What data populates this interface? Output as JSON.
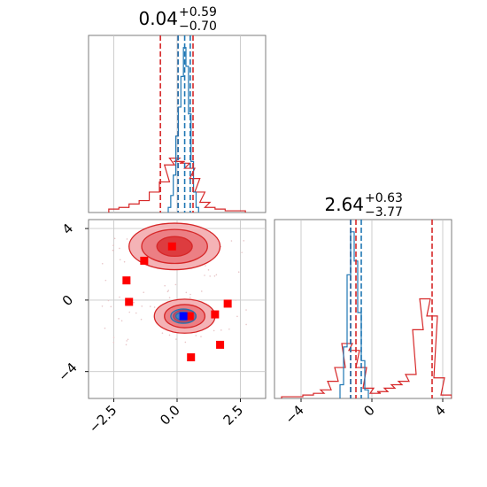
{
  "chart_data": [
    {
      "panel": "top-left",
      "type": "histogram",
      "title": {
        "main": "0.04",
        "sup": "+0.59",
        "sub": "−0.70"
      },
      "xlim": [
        -3.5,
        3.5
      ],
      "series": [
        {
          "color": "#d62728",
          "bin_centers": [
            -2.5,
            -2.1,
            -1.7,
            -1.3,
            -0.9,
            -0.5,
            -0.3,
            -0.1,
            0.1,
            0.3,
            0.5,
            0.7,
            0.9,
            1.1,
            1.3,
            1.7,
            2.1,
            2.5
          ],
          "counts": [
            0.02,
            0.03,
            0.05,
            0.07,
            0.12,
            0.18,
            0.28,
            0.32,
            0.3,
            0.29,
            0.26,
            0.2,
            0.12,
            0.06,
            0.03,
            0.02,
            0.01,
            0.01
          ]
        },
        {
          "color": "#1f77b4",
          "bin_centers": [
            -0.3,
            -0.2,
            -0.1,
            0.0,
            0.1,
            0.2,
            0.3,
            0.4,
            0.5,
            0.6,
            0.7,
            0.8
          ],
          "counts": [
            0.03,
            0.1,
            0.22,
            0.45,
            0.62,
            0.8,
            0.97,
            0.86,
            0.58,
            0.3,
            0.12,
            0.03
          ]
        }
      ],
      "vlines": [
        {
          "x": -0.66,
          "color": "#d62728"
        },
        {
          "x": 0.04,
          "color": "#d62728"
        },
        {
          "x": 0.63,
          "color": "#d62728"
        },
        {
          "x": 0.04,
          "color": "#1f77b4"
        },
        {
          "x": 0.3,
          "color": "#1f77b4"
        },
        {
          "x": 0.52,
          "color": "#1f77b4"
        }
      ]
    },
    {
      "panel": "bottom-right",
      "type": "histogram",
      "title": {
        "main": "2.64",
        "sup": "+0.63",
        "sub": "−3.77"
      },
      "xlim": [
        -5.5,
        4.5
      ],
      "xticks": [
        "−4",
        "0",
        "4"
      ],
      "xtick_values": [
        -4,
        0,
        4
      ],
      "series": [
        {
          "color": "#d62728",
          "bin_centers": [
            -4.8,
            -4.2,
            -3.6,
            -3.0,
            -2.6,
            -2.2,
            -1.8,
            -1.4,
            -1.0,
            -0.6,
            -0.2,
            0.2,
            0.6,
            1.0,
            1.4,
            1.8,
            2.2,
            2.6,
            3.0,
            3.4,
            3.8,
            4.2
          ],
          "counts": [
            0.01,
            0.01,
            0.02,
            0.03,
            0.05,
            0.1,
            0.18,
            0.32,
            0.28,
            0.18,
            0.06,
            0.03,
            0.04,
            0.06,
            0.08,
            0.1,
            0.14,
            0.4,
            0.58,
            0.48,
            0.12,
            0.02
          ]
        },
        {
          "color": "#1f77b4",
          "bin_centers": [
            -1.7,
            -1.5,
            -1.3,
            -1.1,
            -0.9,
            -0.7,
            -0.5,
            -0.3
          ],
          "counts": [
            0.08,
            0.3,
            0.72,
            0.97,
            0.8,
            0.5,
            0.22,
            0.05
          ]
        }
      ],
      "vlines": [
        {
          "x": -1.2,
          "color": "#d62728"
        },
        {
          "x": -0.9,
          "color": "#d62728"
        },
        {
          "x": 3.4,
          "color": "#d62728"
        },
        {
          "x": -1.2,
          "color": "#1f77b4"
        },
        {
          "x": -0.6,
          "color": "#1f77b4"
        }
      ]
    },
    {
      "panel": "bottom-left",
      "type": "scatter",
      "xlim": [
        -3.5,
        3.5
      ],
      "ylim": [
        -5.5,
        4.5
      ],
      "xticks": [
        "−2.5",
        "0.0",
        "2.5"
      ],
      "xtick_values": [
        -2.5,
        0,
        2.5
      ],
      "yticks": [
        "−4",
        "0",
        "4"
      ],
      "ytick_values": [
        -4,
        0,
        4
      ],
      "contours": [
        {
          "color": "#d62728",
          "cx": -0.1,
          "cy": 3.0,
          "rx": [
            1.8,
            1.3,
            0.7
          ],
          "ry": [
            1.3,
            0.95,
            0.55
          ]
        },
        {
          "color": "#d62728",
          "cx": 0.3,
          "cy": -0.9,
          "rx": [
            1.2,
            0.8,
            0.45
          ],
          "ry": [
            0.95,
            0.65,
            0.35
          ]
        },
        {
          "color": "#1f77b4",
          "cx": 0.25,
          "cy": -0.9,
          "rx": [
            0.5,
            0.3
          ],
          "ry": [
            0.4,
            0.22
          ]
        }
      ],
      "markers": {
        "red": [
          [
            -0.2,
            3.0
          ],
          [
            -1.3,
            2.2
          ],
          [
            -2.0,
            1.1
          ],
          [
            -1.9,
            -0.1
          ],
          [
            2.0,
            -0.2
          ],
          [
            1.5,
            -0.8
          ],
          [
            0.5,
            -0.9
          ],
          [
            1.7,
            -2.5
          ],
          [
            0.55,
            -3.2
          ]
        ],
        "blue": [
          [
            0.25,
            -0.9
          ]
        ]
      }
    }
  ]
}
